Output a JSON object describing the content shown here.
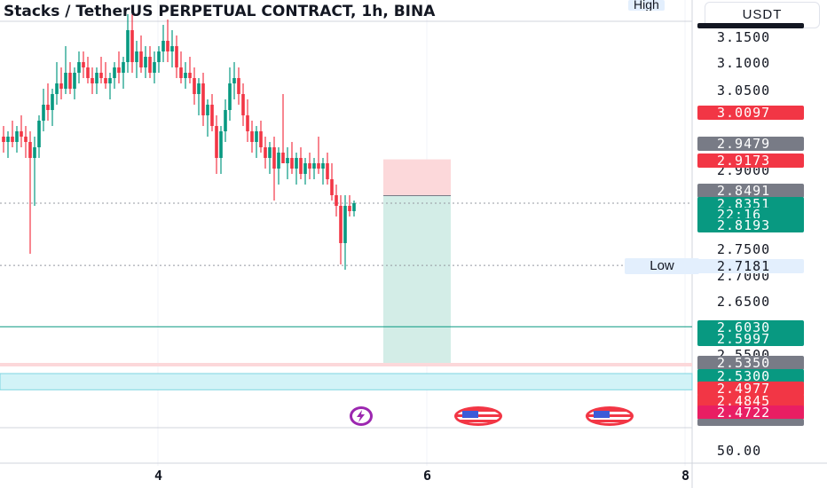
{
  "header": {
    "title": "Stacks / TetherUS PERPETUAL CONTRACT, 1h, BINA",
    "high_label": "High",
    "currency": "USDT"
  },
  "low_label": "Low",
  "colors": {
    "up": "#089981",
    "down": "#f23645",
    "gray": "#787b86",
    "pink": "#e91e63",
    "profit_fill": "#d3ede7",
    "stop_fill": "#fcd8da",
    "zone_cyan": "#d2f3f7"
  },
  "price_axis_labels": [
    "3.1500",
    "3.1000",
    "3.0500",
    "2.9000",
    "2.7500",
    "2.7000",
    "2.6500",
    "2.5500",
    "50.00"
  ],
  "price_tags": [
    {
      "text": "3.0097",
      "color": "#f23645"
    },
    {
      "text": "2.9479",
      "color": "#787b86"
    },
    {
      "text": "2.9173",
      "color": "#f23645"
    },
    {
      "text": "2.8491",
      "color": "#787b86"
    },
    {
      "text": "2.8351",
      "color": "#089981"
    },
    {
      "text": "22:16",
      "color": "#089981"
    },
    {
      "text": "2.8193",
      "color": "#089981"
    },
    {
      "text": "2.7181",
      "color": "#e3effd"
    },
    {
      "text": "2.6030",
      "color": "#089981"
    },
    {
      "text": "2.5997",
      "color": "#089981"
    },
    {
      "text": "2.5350",
      "color": "#787b86"
    },
    {
      "text": "2.5300",
      "color": "#089981"
    },
    {
      "text": "2.4977",
      "color": "#f23645"
    },
    {
      "text": "2.4845",
      "color": "#f23645"
    },
    {
      "text": "2.4722",
      "color": "#e91e63"
    }
  ],
  "time_axis_labels": [
    "4",
    "6",
    "8"
  ],
  "event_icons": [
    "lightning-icon",
    "us-flag-icon",
    "us-flag-icon"
  ],
  "chart_data": {
    "type": "candlestick",
    "title": "Stacks / TetherUS PERPETUAL CONTRACT, 1h, BINA",
    "ylim": [
      2.445,
      3.175
    ],
    "candles": [
      {
        "o": 2.96,
        "h": 2.98,
        "l": 2.93,
        "c": 2.95
      },
      {
        "o": 2.95,
        "h": 2.97,
        "l": 2.92,
        "c": 2.96
      },
      {
        "o": 2.96,
        "h": 2.99,
        "l": 2.94,
        "c": 2.95
      },
      {
        "o": 2.95,
        "h": 2.98,
        "l": 2.93,
        "c": 2.97
      },
      {
        "o": 2.97,
        "h": 3.0,
        "l": 2.94,
        "c": 2.96
      },
      {
        "o": 2.96,
        "h": 2.98,
        "l": 2.92,
        "c": 2.95
      },
      {
        "o": 2.95,
        "h": 2.97,
        "l": 2.74,
        "c": 2.92
      },
      {
        "o": 2.92,
        "h": 2.96,
        "l": 2.83,
        "c": 2.94
      },
      {
        "o": 2.94,
        "h": 3.0,
        "l": 2.92,
        "c": 2.99
      },
      {
        "o": 2.99,
        "h": 3.05,
        "l": 2.97,
        "c": 3.02
      },
      {
        "o": 3.02,
        "h": 3.06,
        "l": 2.99,
        "c": 3.01
      },
      {
        "o": 3.01,
        "h": 3.05,
        "l": 2.98,
        "c": 3.04
      },
      {
        "o": 3.04,
        "h": 3.1,
        "l": 3.02,
        "c": 3.06
      },
      {
        "o": 3.06,
        "h": 3.09,
        "l": 3.03,
        "c": 3.05
      },
      {
        "o": 3.05,
        "h": 3.13,
        "l": 3.04,
        "c": 3.08
      },
      {
        "o": 3.08,
        "h": 3.1,
        "l": 3.04,
        "c": 3.05
      },
      {
        "o": 3.05,
        "h": 3.09,
        "l": 3.03,
        "c": 3.08
      },
      {
        "o": 3.08,
        "h": 3.12,
        "l": 3.06,
        "c": 3.1
      },
      {
        "o": 3.1,
        "h": 3.12,
        "l": 3.07,
        "c": 3.09
      },
      {
        "o": 3.09,
        "h": 3.11,
        "l": 3.06,
        "c": 3.07
      },
      {
        "o": 3.07,
        "h": 3.09,
        "l": 3.04,
        "c": 3.06
      },
      {
        "o": 3.06,
        "h": 3.09,
        "l": 3.04,
        "c": 3.08
      },
      {
        "o": 3.08,
        "h": 3.11,
        "l": 3.06,
        "c": 3.07
      },
      {
        "o": 3.07,
        "h": 3.1,
        "l": 3.05,
        "c": 3.06
      },
      {
        "o": 3.06,
        "h": 3.08,
        "l": 3.03,
        "c": 3.07
      },
      {
        "o": 3.07,
        "h": 3.1,
        "l": 3.05,
        "c": 3.09
      },
      {
        "o": 3.09,
        "h": 3.12,
        "l": 3.06,
        "c": 3.08
      },
      {
        "o": 3.08,
        "h": 3.11,
        "l": 3.05,
        "c": 3.1
      },
      {
        "o": 3.1,
        "h": 3.19,
        "l": 3.08,
        "c": 3.16
      },
      {
        "o": 3.16,
        "h": 3.19,
        "l": 3.08,
        "c": 3.1
      },
      {
        "o": 3.1,
        "h": 3.14,
        "l": 3.07,
        "c": 3.12
      },
      {
        "o": 3.12,
        "h": 3.15,
        "l": 3.08,
        "c": 3.09
      },
      {
        "o": 3.09,
        "h": 3.13,
        "l": 3.07,
        "c": 3.11
      },
      {
        "o": 3.11,
        "h": 3.13,
        "l": 3.07,
        "c": 3.08
      },
      {
        "o": 3.08,
        "h": 3.12,
        "l": 3.06,
        "c": 3.1
      },
      {
        "o": 3.1,
        "h": 3.13,
        "l": 3.08,
        "c": 3.12
      },
      {
        "o": 3.12,
        "h": 3.17,
        "l": 3.1,
        "c": 3.14
      },
      {
        "o": 3.14,
        "h": 3.18,
        "l": 3.1,
        "c": 3.12
      },
      {
        "o": 3.12,
        "h": 3.16,
        "l": 3.09,
        "c": 3.13
      },
      {
        "o": 3.13,
        "h": 3.15,
        "l": 3.07,
        "c": 3.09
      },
      {
        "o": 3.09,
        "h": 3.12,
        "l": 3.06,
        "c": 3.07
      },
      {
        "o": 3.07,
        "h": 3.1,
        "l": 3.05,
        "c": 3.08
      },
      {
        "o": 3.08,
        "h": 3.11,
        "l": 3.06,
        "c": 3.07
      },
      {
        "o": 3.07,
        "h": 3.09,
        "l": 3.02,
        "c": 3.04
      },
      {
        "o": 3.04,
        "h": 3.07,
        "l": 3.0,
        "c": 3.06
      },
      {
        "o": 3.06,
        "h": 3.08,
        "l": 2.98,
        "c": 3.0
      },
      {
        "o": 3.0,
        "h": 3.03,
        "l": 2.96,
        "c": 3.02
      },
      {
        "o": 3.02,
        "h": 3.04,
        "l": 2.97,
        "c": 2.98
      },
      {
        "o": 2.98,
        "h": 3.0,
        "l": 2.89,
        "c": 2.92
      },
      {
        "o": 2.92,
        "h": 2.98,
        "l": 2.89,
        "c": 2.97
      },
      {
        "o": 2.97,
        "h": 3.03,
        "l": 2.95,
        "c": 3.01
      },
      {
        "o": 3.01,
        "h": 3.09,
        "l": 2.99,
        "c": 3.06
      },
      {
        "o": 3.06,
        "h": 3.1,
        "l": 3.03,
        "c": 3.07
      },
      {
        "o": 3.07,
        "h": 3.09,
        "l": 3.02,
        "c": 3.04
      },
      {
        "o": 3.04,
        "h": 3.06,
        "l": 2.98,
        "c": 3.0
      },
      {
        "o": 3.0,
        "h": 3.03,
        "l": 2.95,
        "c": 2.97
      },
      {
        "o": 2.97,
        "h": 2.99,
        "l": 2.93,
        "c": 2.95
      },
      {
        "o": 2.95,
        "h": 2.98,
        "l": 2.92,
        "c": 2.97
      },
      {
        "o": 2.97,
        "h": 2.99,
        "l": 2.93,
        "c": 2.94
      },
      {
        "o": 2.94,
        "h": 2.96,
        "l": 2.9,
        "c": 2.92
      },
      {
        "o": 2.92,
        "h": 2.95,
        "l": 2.89,
        "c": 2.94
      },
      {
        "o": 2.94,
        "h": 2.96,
        "l": 2.84,
        "c": 2.9
      },
      {
        "o": 2.9,
        "h": 2.94,
        "l": 2.87,
        "c": 2.93
      },
      {
        "o": 2.93,
        "h": 3.04,
        "l": 2.91,
        "c": 2.91
      },
      {
        "o": 2.91,
        "h": 2.94,
        "l": 2.88,
        "c": 2.92
      },
      {
        "o": 2.92,
        "h": 2.95,
        "l": 2.89,
        "c": 2.9
      },
      {
        "o": 2.9,
        "h": 2.93,
        "l": 2.87,
        "c": 2.92
      },
      {
        "o": 2.92,
        "h": 2.94,
        "l": 2.88,
        "c": 2.89
      },
      {
        "o": 2.89,
        "h": 2.92,
        "l": 2.87,
        "c": 2.91
      },
      {
        "o": 2.91,
        "h": 2.93,
        "l": 2.88,
        "c": 2.9
      },
      {
        "o": 2.9,
        "h": 2.92,
        "l": 2.88,
        "c": 2.91
      },
      {
        "o": 2.91,
        "h": 2.96,
        "l": 2.89,
        "c": 2.9
      },
      {
        "o": 2.9,
        "h": 2.92,
        "l": 2.87,
        "c": 2.91
      },
      {
        "o": 2.91,
        "h": 2.93,
        "l": 2.87,
        "c": 2.88
      },
      {
        "o": 2.88,
        "h": 2.91,
        "l": 2.84,
        "c": 2.85
      },
      {
        "o": 2.85,
        "h": 2.87,
        "l": 2.81,
        "c": 2.83
      },
      {
        "o": 2.83,
        "h": 2.85,
        "l": 2.72,
        "c": 2.76
      },
      {
        "o": 2.76,
        "h": 2.85,
        "l": 2.71,
        "c": 2.83
      },
      {
        "o": 2.83,
        "h": 2.85,
        "l": 2.81,
        "c": 2.82
      },
      {
        "o": 2.82,
        "h": 2.84,
        "l": 2.81,
        "c": 2.835
      }
    ],
    "position": {
      "stop": 2.9173,
      "entry": 2.8491,
      "target": 2.535
    },
    "horizontal_lines": [
      2.8351,
      2.7181,
      2.603,
      2.5997
    ],
    "zones": [
      {
        "top": 2.535,
        "bottom": 2.53,
        "color": "#fcd8da"
      },
      {
        "top": 2.515,
        "bottom": 2.4845,
        "color": "#d2f3f7"
      }
    ],
    "x_tick_positions": {
      "4": 178,
      "6": 481,
      "8": 772
    }
  }
}
